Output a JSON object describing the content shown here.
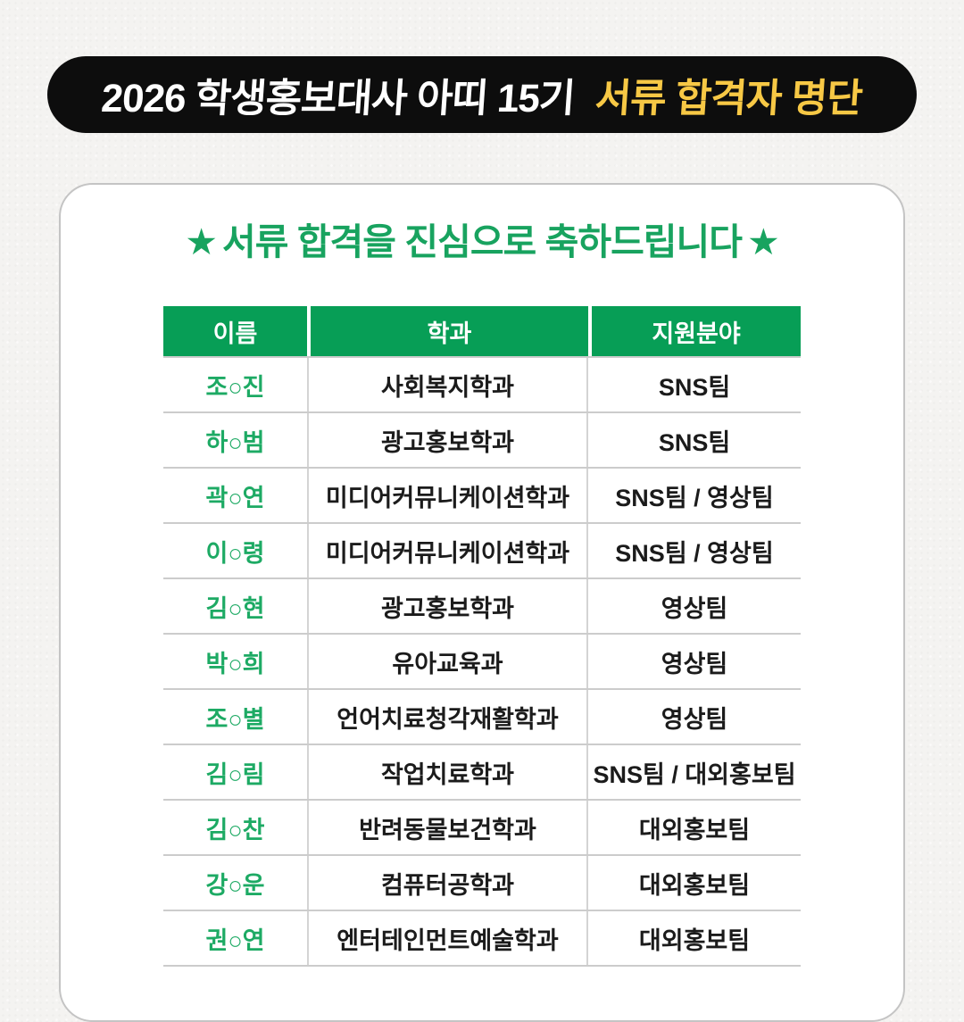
{
  "colors": {
    "banner_background": "#0d0d0d",
    "banner_highlight_yellow": "#f7c845",
    "table_header_green": "#079e56",
    "name_green": "#1daa64",
    "subtitle_green": "#18a35f",
    "page_background": "#f4f3f1"
  },
  "title_banner": {
    "text_main": "2026 학생홍보대사 아띠 15기",
    "text_highlight": "서류 합격자 명단"
  },
  "card": {
    "subtitle": {
      "star_left": "★",
      "text": "서류 합격을 진심으로 축하드립니다",
      "star_right": "★"
    },
    "table": {
      "headers": [
        "이름",
        "학과",
        "지원분야"
      ],
      "rows": [
        {
          "name": "조○진",
          "department": "사회복지학과",
          "field": "SNS팀"
        },
        {
          "name": "하○범",
          "department": "광고홍보학과",
          "field": "SNS팀"
        },
        {
          "name": "곽○연",
          "department": "미디어커뮤니케이션학과",
          "field": "SNS팀 / 영상팀"
        },
        {
          "name": "이○령",
          "department": "미디어커뮤니케이션학과",
          "field": "SNS팀 / 영상팀"
        },
        {
          "name": "김○현",
          "department": "광고홍보학과",
          "field": "영상팀"
        },
        {
          "name": "박○희",
          "department": "유아교육과",
          "field": "영상팀"
        },
        {
          "name": "조○별",
          "department": "언어치료청각재활학과",
          "field": "영상팀"
        },
        {
          "name": "김○림",
          "department": "작업치료학과",
          "field": "SNS팀 / 대외홍보팀"
        },
        {
          "name": "김○찬",
          "department": "반려동물보건학과",
          "field": "대외홍보팀"
        },
        {
          "name": "강○운",
          "department": "컴퓨터공학과",
          "field": "대외홍보팀"
        },
        {
          "name": "권○연",
          "department": "엔터테인먼트예술학과",
          "field": "대외홍보팀"
        }
      ]
    }
  }
}
